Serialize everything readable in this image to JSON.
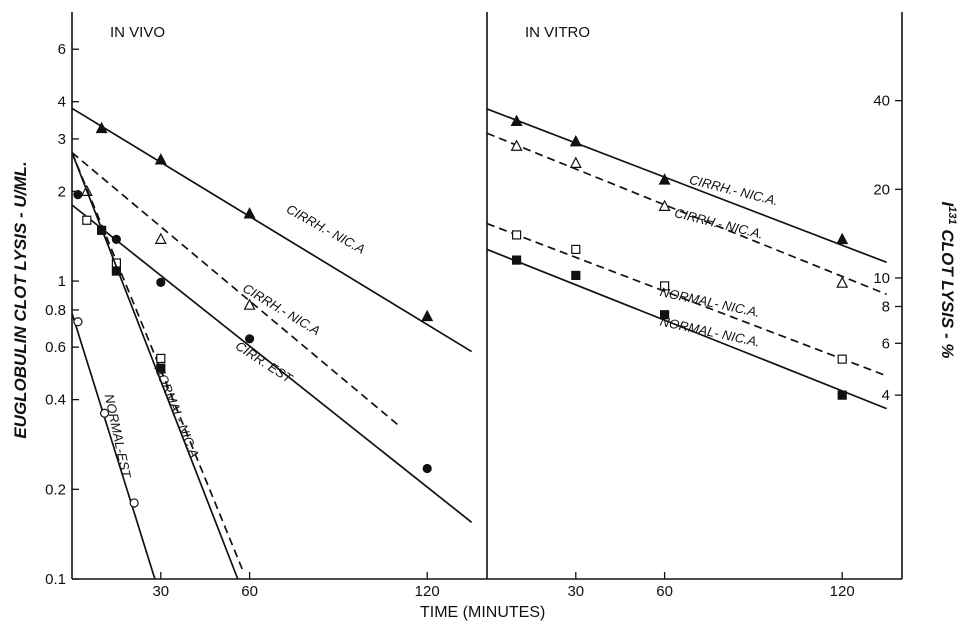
{
  "xlabel": "TIME (MINUTES)",
  "ylabel_left": "EUGLOBULIN CLOT LYSIS - U/ML.",
  "ylabel_right_prefix": "I",
  "ylabel_right_sup": "131",
  "ylabel_right_rest": " CLOT LYSIS - %",
  "chart_data": [
    {
      "type": "scatter",
      "title": "IN VIVO",
      "xlabel": "TIME (MINUTES)",
      "ylabel": "EUGLOBULIN CLOT LYSIS - U/ML.",
      "yscale": "log",
      "xlim": [
        0,
        135
      ],
      "ylim": [
        0.1,
        8
      ],
      "x_ticks": [
        30,
        60,
        120
      ],
      "y_ticks": [
        0.1,
        0.2,
        0.4,
        0.6,
        0.8,
        1,
        2,
        3,
        4,
        6
      ],
      "y_tick_labels": [
        "0.1",
        "0.2",
        "0.4",
        "0.6",
        "0.8",
        "1",
        "2",
        "3",
        "4",
        "6"
      ],
      "series": [
        {
          "name": "CIRRH.- NIC.A",
          "marker": "filled-triangle",
          "line": "solid",
          "points": [
            [
              10,
              3.25
            ],
            [
              30,
              2.55
            ],
            [
              60,
              1.68
            ],
            [
              120,
              0.76
            ]
          ],
          "fit": [
            [
              0,
              3.8
            ],
            [
              135,
              0.58
            ]
          ],
          "label_at": [
            85,
            1.45
          ],
          "label_angle": 29
        },
        {
          "name": "CIRRH.- NIC.A",
          "marker": "open-triangle",
          "line": "dashed",
          "points": [
            [
              5,
              2.0
            ],
            [
              30,
              1.38
            ],
            [
              60,
              0.83
            ]
          ],
          "fit": [
            [
              0,
              2.7
            ],
            [
              110,
              0.33
            ]
          ],
          "label_at": [
            70,
            0.78
          ],
          "label_angle": 31
        },
        {
          "name": "CIRR. EST",
          "marker": "filled-circle",
          "line": "solid",
          "points": [
            [
              2,
              1.95
            ],
            [
              15,
              1.38
            ],
            [
              30,
              0.99
            ],
            [
              60,
              0.64
            ],
            [
              120,
              0.235
            ]
          ],
          "fit": [
            [
              0,
              1.8
            ],
            [
              135,
              0.155
            ]
          ],
          "label_at": [
            64,
            0.52
          ],
          "label_angle": 33
        },
        {
          "name": "NORMAL- NIC.A",
          "marker": "open-square",
          "line": "dashed",
          "points": [
            [
              5,
              1.6
            ],
            [
              15,
              1.15
            ],
            [
              30,
              0.55
            ]
          ],
          "fit": [
            [
              0,
              2.7
            ],
            [
              58,
              0.105
            ]
          ],
          "label_at": [
            34,
            0.36
          ],
          "label_angle": 68
        },
        {
          "name": "NORMAL- NIC.A",
          "marker": "filled-square",
          "line": "solid",
          "points": [
            [
              10,
              1.48
            ],
            [
              15,
              1.08
            ],
            [
              30,
              0.51
            ]
          ],
          "fit": [
            [
              0,
              2.7
            ],
            [
              56,
              0.1
            ]
          ],
          "label_at": null,
          "label_angle": 0
        },
        {
          "name": "NORMAL-EST",
          "marker": "open-circle",
          "line": "solid",
          "points": [
            [
              2,
              0.73
            ],
            [
              11,
              0.36
            ],
            [
              21,
              0.18
            ]
          ],
          "fit": [
            [
              0,
              0.78
            ],
            [
              28,
              0.1
            ]
          ],
          "label_at": [
            14,
            0.3
          ],
          "label_angle": 78
        }
      ]
    },
    {
      "type": "scatter",
      "title": "IN VITRO",
      "xlabel": "TIME (MINUTES)",
      "ylabel": "I131 CLOT LYSIS - %",
      "yscale": "log",
      "xlim": [
        0,
        135
      ],
      "ylim": [
        0.95,
        80
      ],
      "x_ticks": [
        30,
        60,
        120
      ],
      "y_ticks": [
        4,
        6,
        8,
        10,
        20,
        40
      ],
      "y_tick_labels": [
        "4",
        "6",
        "8",
        "10",
        "20",
        "40"
      ],
      "series": [
        {
          "name": "CIRRH.- NIC.A.",
          "marker": "filled-triangle",
          "line": "solid",
          "points": [
            [
              10,
              34
            ],
            [
              30,
              29
            ],
            [
              60,
              21.5
            ],
            [
              120,
              13.5
            ]
          ],
          "fit": [
            [
              0,
              37.5
            ],
            [
              135,
              11.3
            ]
          ],
          "label_at": [
            83,
            19.2
          ],
          "label_angle": 14
        },
        {
          "name": "CIRRH.- NIC.A.",
          "marker": "open-triangle",
          "line": "dashed",
          "points": [
            [
              10,
              28
            ],
            [
              30,
              24.5
            ],
            [
              60,
              17.5
            ],
            [
              120,
              9.6
            ]
          ],
          "fit": [
            [
              0,
              31
            ],
            [
              135,
              8.8
            ]
          ],
          "label_at": [
            78,
            14.8
          ],
          "label_angle": 14
        },
        {
          "name": "NORMAL- NIC.A.",
          "marker": "open-square",
          "line": "dashed",
          "points": [
            [
              10,
              14
            ],
            [
              30,
              12.5
            ],
            [
              60,
              9.4
            ],
            [
              120,
              5.3
            ]
          ],
          "fit": [
            [
              0,
              15.3
            ],
            [
              135,
              4.65
            ]
          ],
          "label_at": [
            75,
            8.0
          ],
          "label_angle": 12
        },
        {
          "name": "NORMAL- NIC.A.",
          "marker": "filled-square",
          "line": "solid",
          "points": [
            [
              10,
              11.5
            ],
            [
              30,
              10.2
            ],
            [
              60,
              7.5
            ],
            [
              120,
              4.0
            ]
          ],
          "fit": [
            [
              0,
              12.5
            ],
            [
              135,
              3.6
            ]
          ],
          "label_at": [
            75,
            6.35
          ],
          "label_angle": 12
        }
      ]
    }
  ]
}
